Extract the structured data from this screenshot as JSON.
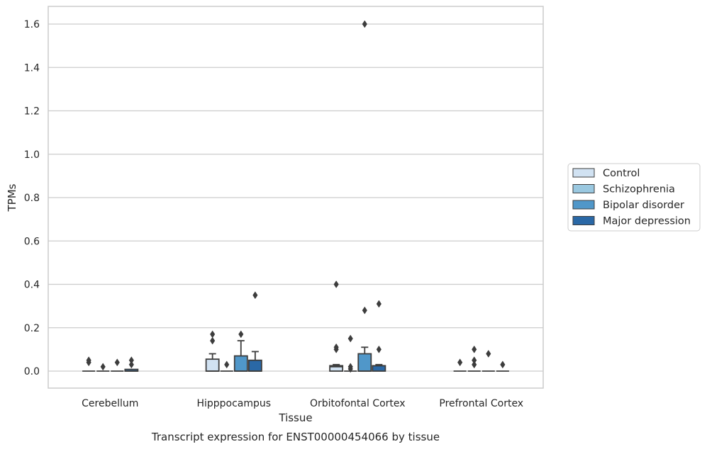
{
  "chart_data": {
    "type": "box",
    "title": "",
    "caption": "Transcript expression for ENST00000454066 by tissue",
    "xlabel": "Tissue",
    "ylabel": "TPMs",
    "ylim": [
      -0.08,
      1.68
    ],
    "yticks": [
      "0.0",
      "0.2",
      "0.4",
      "0.6",
      "0.8",
      "1.0",
      "1.2",
      "1.4",
      "1.6"
    ],
    "grid": "horizontal",
    "legend_position": "right",
    "categories": [
      "Cerebellum",
      "Hipppocampus",
      "Orbitofontal Cortex",
      "Prefrontal Cortex"
    ],
    "series": [
      {
        "name": "Control",
        "color": "#d1e2f2",
        "boxes": [
          {
            "q1": 0,
            "median": 0,
            "q3": 0,
            "whisker_low": 0,
            "whisker_high": 0,
            "outliers": [
              0.04,
              0.05
            ]
          },
          {
            "q1": 0,
            "median": 0,
            "q3": 0.055,
            "whisker_low": 0,
            "whisker_high": 0.08,
            "outliers": [
              0.14,
              0.17
            ]
          },
          {
            "q1": 0,
            "median": 0.02,
            "q3": 0.025,
            "whisker_low": 0,
            "whisker_high": 0.03,
            "outliers": [
              0.1,
              0.11,
              0.4
            ]
          },
          {
            "q1": 0,
            "median": 0,
            "q3": 0,
            "whisker_low": 0,
            "whisker_high": 0,
            "outliers": [
              0.04
            ]
          }
        ]
      },
      {
        "name": "Schizophrenia",
        "color": "#9ac8e0",
        "boxes": [
          {
            "q1": 0,
            "median": 0,
            "q3": 0,
            "whisker_low": 0,
            "whisker_high": 0,
            "outliers": [
              0.02
            ]
          },
          {
            "q1": 0,
            "median": 0,
            "q3": 0,
            "whisker_low": 0,
            "whisker_high": 0,
            "outliers": [
              0.03
            ]
          },
          {
            "q1": 0,
            "median": 0,
            "q3": 0,
            "whisker_low": 0,
            "whisker_high": 0,
            "outliers": [
              0.01,
              0.02,
              0.15
            ]
          },
          {
            "q1": 0,
            "median": 0,
            "q3": 0,
            "whisker_low": 0,
            "whisker_high": 0,
            "outliers": [
              0.03,
              0.05,
              0.1
            ]
          }
        ]
      },
      {
        "name": "Bipolar disorder",
        "color": "#5097c9",
        "boxes": [
          {
            "q1": 0,
            "median": 0,
            "q3": 0,
            "whisker_low": 0,
            "whisker_high": 0,
            "outliers": [
              0.04
            ]
          },
          {
            "q1": 0,
            "median": 0,
            "q3": 0.07,
            "whisker_low": 0,
            "whisker_high": 0.14,
            "outliers": [
              0.17
            ]
          },
          {
            "q1": 0,
            "median": 0,
            "q3": 0.08,
            "whisker_low": 0,
            "whisker_high": 0.11,
            "outliers": [
              0.28,
              1.6
            ]
          },
          {
            "q1": 0,
            "median": 0,
            "q3": 0,
            "whisker_low": 0,
            "whisker_high": 0,
            "outliers": [
              0.08
            ]
          }
        ]
      },
      {
        "name": "Major depression",
        "color": "#2a68a6",
        "boxes": [
          {
            "q1": 0,
            "median": 0,
            "q3": 0.008,
            "whisker_low": 0,
            "whisker_high": 0.008,
            "outliers": [
              0.03,
              0.05
            ]
          },
          {
            "q1": 0,
            "median": 0,
            "q3": 0.05,
            "whisker_low": 0,
            "whisker_high": 0.09,
            "outliers": [
              0.35
            ]
          },
          {
            "q1": 0,
            "median": 0.025,
            "q3": 0.025,
            "whisker_low": 0,
            "whisker_high": 0.03,
            "outliers": [
              0.1,
              0.31
            ]
          },
          {
            "q1": 0,
            "median": 0,
            "q3": 0,
            "whisker_low": 0,
            "whisker_high": 0,
            "outliers": [
              0.03
            ]
          }
        ]
      }
    ]
  }
}
